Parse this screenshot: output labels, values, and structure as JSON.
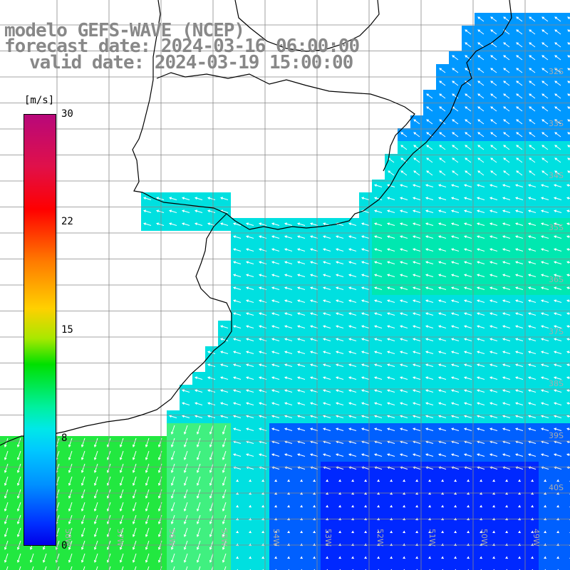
{
  "title": {
    "line1": "modelo GEFS-WAVE (NCEP)",
    "line2": "forecast date: 2024-03-16 06:00:00",
    "line3": "valid date: 2024-03-19 15:00:00"
  },
  "colorbar": {
    "units": "[m/s]",
    "ticks": [
      "30",
      "22",
      "15",
      "8",
      "0"
    ],
    "tick_values": [
      30,
      22,
      15,
      8,
      0
    ],
    "range": [
      0,
      30
    ]
  },
  "lat_labels": [
    "32S",
    "33S",
    "34S",
    "35S",
    "36S",
    "37S",
    "38S",
    "39S",
    "40S"
  ],
  "lon_labels": [
    "58W",
    "57W",
    "56W",
    "55W",
    "54W",
    "53W",
    "52W",
    "51W",
    "50W",
    "49W"
  ],
  "colors": {
    "land": "#ffffff",
    "coast": "#000000",
    "grid": "#888888",
    "arrow": "#ffffff"
  }
}
